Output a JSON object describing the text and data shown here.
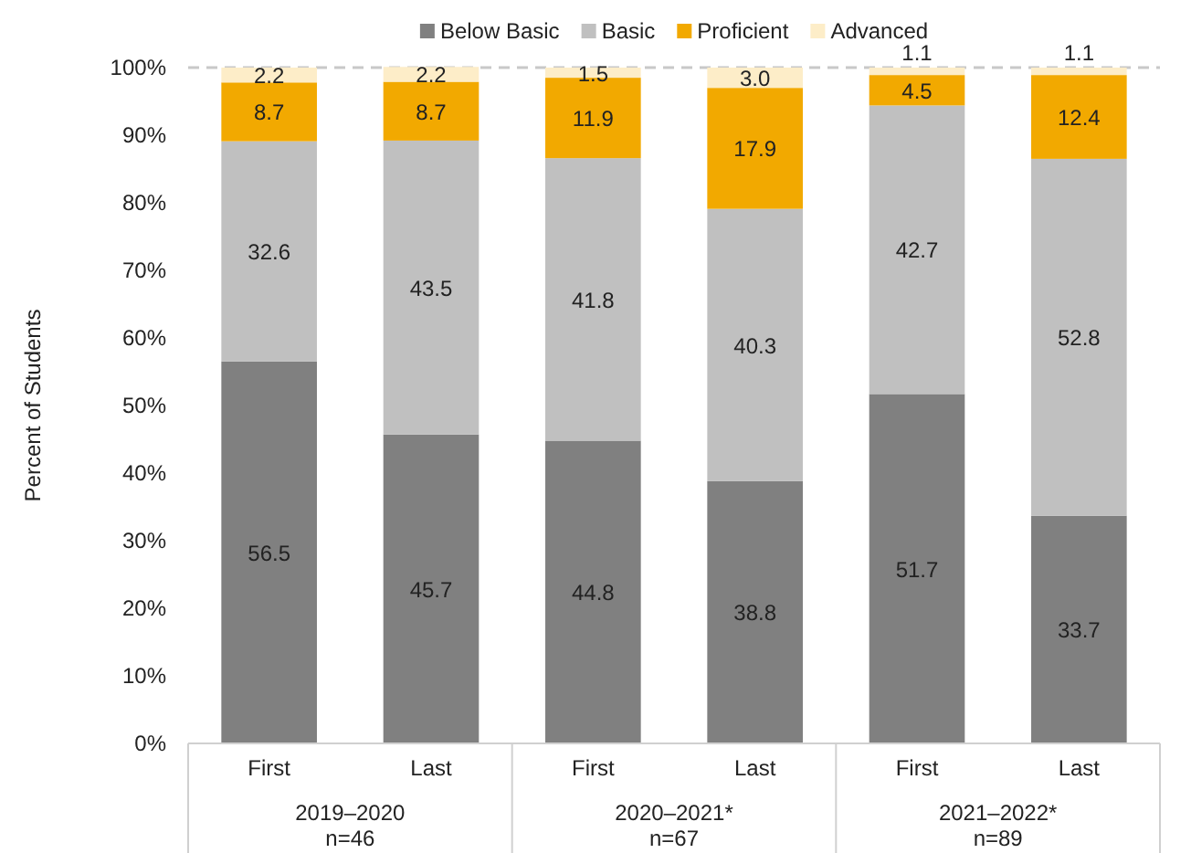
{
  "chart_data": {
    "type": "bar",
    "stacked": true,
    "ylabel": "Percent of Students",
    "categories": [
      "First",
      "Last",
      "First",
      "Last",
      "First",
      "Last"
    ],
    "series": [
      {
        "name": "Below Basic",
        "color": "#808080",
        "values": [
          56.5,
          45.7,
          44.8,
          38.8,
          51.7,
          33.7
        ],
        "value_labels": [
          "56.5",
          "45.7",
          "44.8",
          "38.8",
          "51.7",
          "33.7"
        ]
      },
      {
        "name": "Basic",
        "color": "#c0c0c0",
        "values": [
          32.6,
          43.5,
          41.8,
          40.3,
          42.7,
          52.8
        ],
        "value_labels": [
          "32.6",
          "43.5",
          "41.8",
          "40.3",
          "42.7",
          "52.8"
        ]
      },
      {
        "name": "Proficient",
        "color": "#f2a900",
        "values": [
          8.7,
          8.7,
          11.9,
          17.9,
          4.5,
          12.4
        ],
        "value_labels": [
          "8.7",
          "8.7",
          "11.9",
          "17.9",
          "4.5",
          "12.4"
        ]
      },
      {
        "name": "Advanced",
        "color": "#fdedc8",
        "values": [
          2.2,
          2.2,
          1.5,
          3.0,
          1.1,
          1.1
        ],
        "value_labels": [
          "2.2",
          "2.2",
          "1.5",
          "3.0",
          "1.1",
          "1.1"
        ]
      }
    ],
    "ylim": [
      0,
      100
    ],
    "yticks": [
      {
        "value": 0,
        "label": "0%"
      },
      {
        "value": 10,
        "label": "10%"
      },
      {
        "value": 20,
        "label": "20%"
      },
      {
        "value": 30,
        "label": "30%"
      },
      {
        "value": 40,
        "label": "40%"
      },
      {
        "value": 50,
        "label": "50%"
      },
      {
        "value": 60,
        "label": "60%"
      },
      {
        "value": 70,
        "label": "70%"
      },
      {
        "value": 80,
        "label": "80%"
      },
      {
        "value": 90,
        "label": "90%"
      },
      {
        "value": 100,
        "label": "100%"
      }
    ],
    "ref_lines": [
      {
        "axis": "y",
        "value": 100,
        "color": "#c8c8c8",
        "line_style": "dashed"
      }
    ],
    "grid": false,
    "legend": "top",
    "annotations": [
      "2019–2020\nn=46",
      "2020–2021*\nn=67",
      "2021–2022*\nn=89"
    ]
  }
}
